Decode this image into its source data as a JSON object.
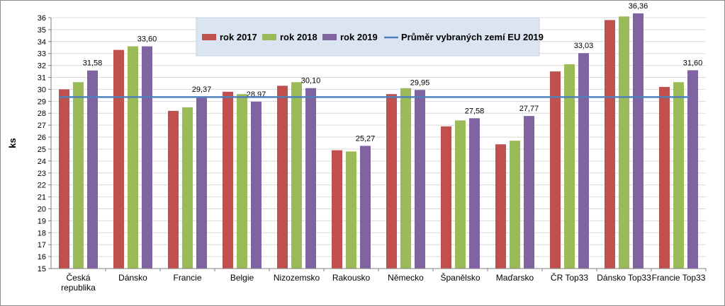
{
  "chart_data": {
    "type": "bar",
    "title": "",
    "xlabel": "",
    "ylabel": "ks",
    "ylim": [
      15,
      36
    ],
    "yticks": [
      "15",
      "16",
      "17",
      "18",
      "19",
      "20",
      "21",
      "22",
      "23",
      "24",
      "25",
      "26",
      "27",
      "28",
      "29",
      "30",
      "31",
      "32",
      "33",
      "34",
      "35",
      "36"
    ],
    "grid": true,
    "legend_position": "top-center",
    "categories": [
      [
        "Česká",
        "republika"
      ],
      [
        "Dánsko"
      ],
      [
        "Francie"
      ],
      [
        "Belgie"
      ],
      [
        "Nizozemsko"
      ],
      [
        "Rakousko"
      ],
      [
        "Německo"
      ],
      [
        "Španělsko"
      ],
      [
        "Maďarsko"
      ],
      [
        "ČR Top33"
      ],
      [
        "Dánsko Top33"
      ],
      [
        "Francie Top33"
      ]
    ],
    "series": [
      {
        "name": "rok 2017",
        "color": "#c0504d",
        "values": [
          30.0,
          33.3,
          28.2,
          29.8,
          30.3,
          24.9,
          29.6,
          26.9,
          25.4,
          31.5,
          35.8,
          30.2
        ]
      },
      {
        "name": "rok 2018",
        "color": "#9bbb59",
        "values": [
          30.6,
          33.6,
          28.5,
          29.6,
          30.6,
          24.8,
          30.1,
          27.4,
          25.7,
          32.1,
          36.1,
          30.6
        ]
      },
      {
        "name": "rok 2019",
        "color": "#8064a2",
        "values": [
          31.58,
          33.6,
          29.37,
          28.97,
          30.1,
          25.27,
          29.95,
          27.58,
          27.77,
          33.03,
          36.36,
          31.6
        ],
        "labels": [
          "31,58",
          "33,60",
          "29,37",
          "28,97",
          "30,10",
          "25,27",
          "29,95",
          "27,58",
          "27,77",
          "33,03",
          "36,36",
          "31,60"
        ]
      }
    ],
    "reference_line": {
      "name": "Průměr vybraných zemí EU 2019",
      "color": "#4f81bd",
      "value": 29.35
    }
  }
}
